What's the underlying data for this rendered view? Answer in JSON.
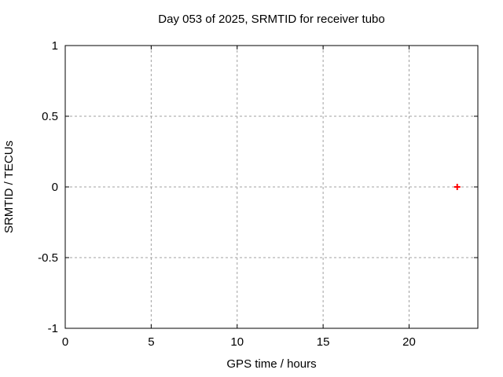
{
  "chart_data": {
    "type": "scatter",
    "title": "Day 053 of 2025, SRMTID for receiver tubo",
    "xlabel": "GPS time / hours",
    "ylabel": "SRMTID / TECUs",
    "xlim": [
      0,
      24
    ],
    "ylim": [
      -1,
      1
    ],
    "grid": true,
    "legend": "none",
    "xticks": {
      "values": [
        0,
        5,
        10,
        15,
        20
      ],
      "labels": [
        "0",
        "5",
        "10",
        "15",
        "20"
      ]
    },
    "yticks": {
      "values": [
        -1,
        -0.5,
        0,
        0.5,
        1
      ],
      "labels": [
        "-1",
        "-0.5",
        "0",
        "0.5",
        "1"
      ]
    },
    "series": [
      {
        "name": "SRMTID",
        "marker": "plus",
        "color": "#ff0000",
        "points": [
          {
            "x": 22.8,
            "y": 0.0
          }
        ]
      }
    ],
    "colors": {
      "background": "#ffffff",
      "border": "#000000",
      "grid": "#a0a0a0",
      "text": "#000000"
    }
  }
}
